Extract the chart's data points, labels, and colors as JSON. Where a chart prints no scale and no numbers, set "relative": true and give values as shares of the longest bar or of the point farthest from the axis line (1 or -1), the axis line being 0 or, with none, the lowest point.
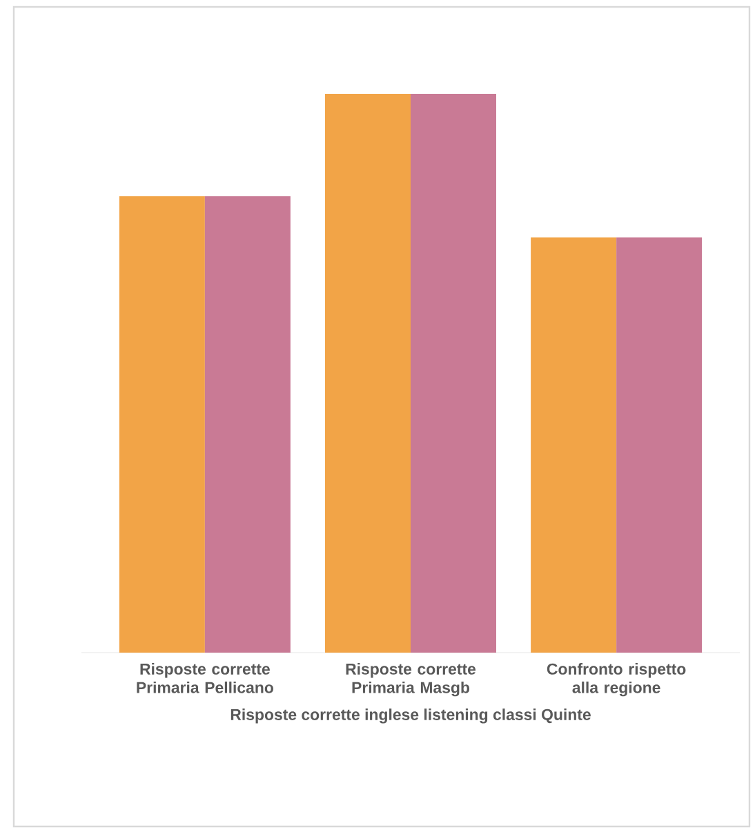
{
  "chart_data": {
    "type": "bar",
    "relative": true,
    "xlabel": "Risposte corrette inglese listening classi Quinte",
    "categories": [
      "Risposte corrette Primaria Pellicano",
      "Risposte corrette Primaria Masgb",
      "Confronto rispetto alla regione"
    ],
    "series": [
      {
        "color": "#f2a447",
        "values": [
          0.817,
          1,
          0.743
        ]
      },
      {
        "color": "#c97a95",
        "values": [
          0.817,
          1,
          0.743
        ]
      }
    ],
    "stacked": false
  }
}
